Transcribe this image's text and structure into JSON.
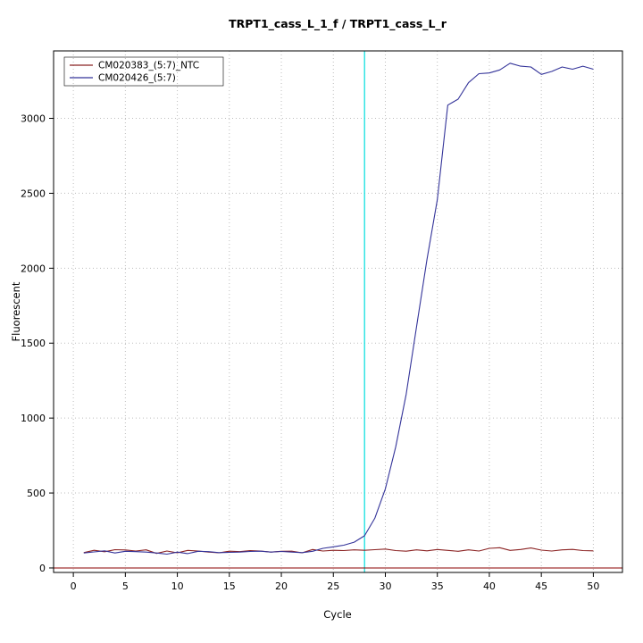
{
  "chart_data": {
    "type": "line",
    "title": "TRPT1_cass_L_1_f / TRPT1_cass_L_r",
    "xlabel": "Cycle",
    "ylabel": "Fluorescent",
    "xlim": [
      -1.9,
      52.8
    ],
    "ylim": [
      -30,
      3450
    ],
    "xticks": [
      0,
      5,
      10,
      15,
      20,
      25,
      30,
      35,
      40,
      45,
      50
    ],
    "yticks": [
      0,
      500,
      1000,
      1500,
      2000,
      2500,
      3000
    ],
    "grid": {
      "show": true,
      "line_style": "dotted",
      "color": "#bdbdbd"
    },
    "legend_position": "top-left",
    "threshold_line": {
      "y": 0,
      "color": "#8b0000"
    },
    "ct_line": {
      "x": 28,
      "color": "#00dddd"
    },
    "x": [
      1,
      2,
      3,
      4,
      5,
      6,
      7,
      8,
      9,
      10,
      11,
      12,
      13,
      14,
      15,
      16,
      17,
      18,
      19,
      20,
      21,
      22,
      23,
      24,
      25,
      26,
      27,
      28,
      29,
      30,
      31,
      32,
      33,
      34,
      35,
      36,
      37,
      38,
      39,
      40,
      41,
      42,
      43,
      44,
      45,
      46,
      47,
      48,
      49,
      50
    ],
    "series": [
      {
        "name": "CM020383_(5:7)_NTC",
        "color": "#8b2323",
        "values": [
          102,
          118,
          108,
          122,
          120,
          113,
          121,
          97,
          113,
          101,
          117,
          113,
          106,
          101,
          112,
          109,
          116,
          113,
          106,
          111,
          112,
          101,
          123,
          113,
          118,
          116,
          121,
          118,
          122,
          126,
          116,
          112,
          121,
          114,
          123,
          117,
          111,
          121,
          113,
          131,
          135,
          117,
          123,
          133,
          119,
          113,
          121,
          124,
          116,
          114
        ]
      },
      {
        "name": "CM020426_(5:7)",
        "color": "#333399",
        "values": [
          100,
          107,
          114,
          100,
          111,
          109,
          106,
          100,
          92,
          106,
          96,
          111,
          109,
          102,
          104,
          106,
          110,
          112,
          106,
          110,
          106,
          102,
          111,
          131,
          141,
          152,
          172,
          215,
          333,
          528,
          808,
          1158,
          1608,
          2058,
          2458,
          3088,
          3128,
          3238,
          3298,
          3303,
          3323,
          3368,
          3348,
          3343,
          3293,
          3313,
          3343,
          3328,
          3348,
          3328
        ]
      }
    ]
  }
}
